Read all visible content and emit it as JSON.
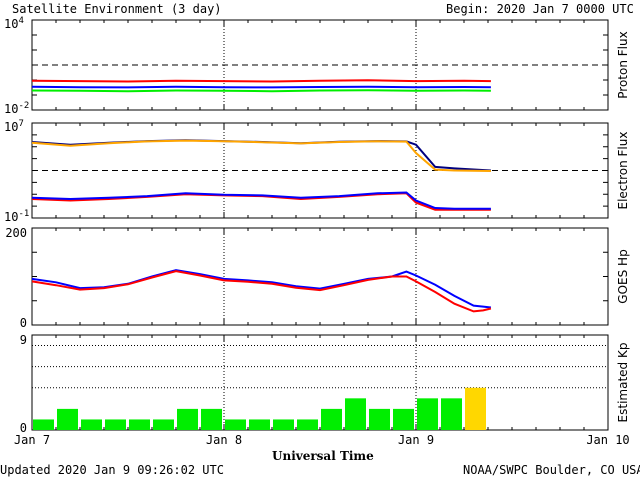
{
  "header": {
    "title": "Satellite Environment (3 day)",
    "begin": "Begin:  2020 Jan 7 0000 UTC"
  },
  "footer": {
    "updated": "Updated 2020 Jan  9 09:26:02 UTC",
    "credit": "NOAA/SWPC Boulder, CO USA"
  },
  "colors": {
    "red": "#ff0000",
    "blue": "#0000ff",
    "green": "#00ee00",
    "orange": "#ffa500",
    "yellow": "#ffd700",
    "navy": "#000080"
  },
  "chart_data": [
    {
      "type": "line",
      "panel": "proton",
      "ylabel": "Proton Flux",
      "yscale": "log",
      "ylim": [
        0.01,
        10000
      ],
      "ytick_labels": [
        {
          "base": "10",
          "exp": "4"
        },
        {
          "base": "10",
          "exp": "-2"
        }
      ],
      "threshold": 10,
      "x": [
        0,
        0.25,
        0.5,
        0.75,
        1.0,
        1.25,
        1.5,
        1.75,
        2.0,
        2.25,
        2.39
      ],
      "series": [
        {
          "color": "red",
          "values": [
            0.9,
            0.85,
            0.8,
            0.9,
            0.85,
            0.8,
            0.9,
            0.95,
            0.85,
            0.9,
            0.85
          ]
        },
        {
          "color": "blue",
          "values": [
            0.35,
            0.33,
            0.32,
            0.35,
            0.33,
            0.32,
            0.34,
            0.36,
            0.33,
            0.34,
            0.33
          ]
        },
        {
          "color": "green",
          "values": [
            0.2,
            0.19,
            0.18,
            0.2,
            0.19,
            0.18,
            0.2,
            0.21,
            0.19,
            0.2,
            0.19
          ]
        }
      ]
    },
    {
      "type": "line",
      "panel": "electron",
      "ylabel": "Electron Flux",
      "yscale": "log",
      "ylim": [
        0.1,
        10000000
      ],
      "ytick_labels": [
        {
          "base": "10",
          "exp": "7"
        },
        {
          "base": "10",
          "exp": "-1"
        }
      ],
      "threshold": 1000,
      "x": [
        0,
        0.2,
        0.4,
        0.6,
        0.8,
        1.0,
        1.2,
        1.4,
        1.6,
        1.8,
        1.95,
        2.0,
        2.1,
        2.2,
        2.39
      ],
      "series": [
        {
          "color": "navy",
          "values": [
            250000,
            150000,
            220000,
            300000,
            350000,
            300000,
            250000,
            200000,
            260000,
            300000,
            280000,
            150000,
            2000,
            1500,
            1000
          ]
        },
        {
          "color": "orange",
          "values": [
            220000,
            120000,
            200000,
            280000,
            330000,
            290000,
            240000,
            190000,
            250000,
            290000,
            270000,
            30000,
            1200,
            1000,
            900
          ]
        },
        {
          "color": "red",
          "values": [
            4,
            3,
            4,
            6,
            10,
            8,
            7,
            4,
            6,
            10,
            12,
            2,
            0.5,
            0.5,
            0.5
          ]
        },
        {
          "color": "blue",
          "values": [
            5,
            4,
            5,
            7,
            12,
            9,
            8,
            5,
            7,
            12,
            14,
            3,
            0.7,
            0.6,
            0.6
          ]
        }
      ]
    },
    {
      "type": "line",
      "panel": "hp",
      "ylabel": "GOES Hp",
      "ylim": [
        0,
        200
      ],
      "ytick_labels": [
        "200",
        "0"
      ],
      "x": [
        0,
        0.125,
        0.25,
        0.375,
        0.5,
        0.625,
        0.75,
        0.875,
        1.0,
        1.125,
        1.25,
        1.375,
        1.5,
        1.625,
        1.75,
        1.875,
        1.95,
        2.0,
        2.1,
        2.2,
        2.3,
        2.35,
        2.39
      ],
      "series": [
        {
          "color": "blue",
          "values": [
            95,
            88,
            76,
            78,
            85,
            100,
            113,
            105,
            95,
            92,
            88,
            80,
            75,
            85,
            95,
            100,
            110,
            102,
            83,
            60,
            40,
            38,
            36
          ]
        },
        {
          "color": "red",
          "values": [
            90,
            82,
            73,
            76,
            84,
            98,
            111,
            102,
            92,
            89,
            85,
            77,
            72,
            82,
            93,
            100,
            100,
            90,
            68,
            44,
            28,
            30,
            34
          ]
        }
      ]
    },
    {
      "type": "bar",
      "panel": "kp",
      "ylabel": "Estimated Kp",
      "ylim": [
        0,
        9
      ],
      "ytick_labels": [
        "9",
        "0"
      ],
      "gridlines": [
        4,
        6,
        8,
        9
      ],
      "x_start": [
        0,
        0.125,
        0.25,
        0.375,
        0.5,
        0.625,
        0.75,
        0.875,
        1.0,
        1.125,
        1.25,
        1.375,
        1.5,
        1.625,
        1.75,
        1.875,
        2.0,
        2.125,
        2.25
      ],
      "values": [
        1,
        2,
        1,
        1,
        1,
        1,
        2,
        2,
        1,
        1,
        1,
        1,
        2,
        3,
        2,
        2,
        3,
        3,
        4
      ],
      "bar_colors": [
        "green",
        "green",
        "green",
        "green",
        "green",
        "green",
        "green",
        "green",
        "green",
        "green",
        "green",
        "green",
        "green",
        "green",
        "green",
        "green",
        "green",
        "green",
        "yellow"
      ]
    }
  ],
  "x_axis": {
    "label": "Universal Time",
    "ticks": [
      "Jan 7",
      "Jan 8",
      "Jan 9",
      "Jan 10"
    ]
  }
}
